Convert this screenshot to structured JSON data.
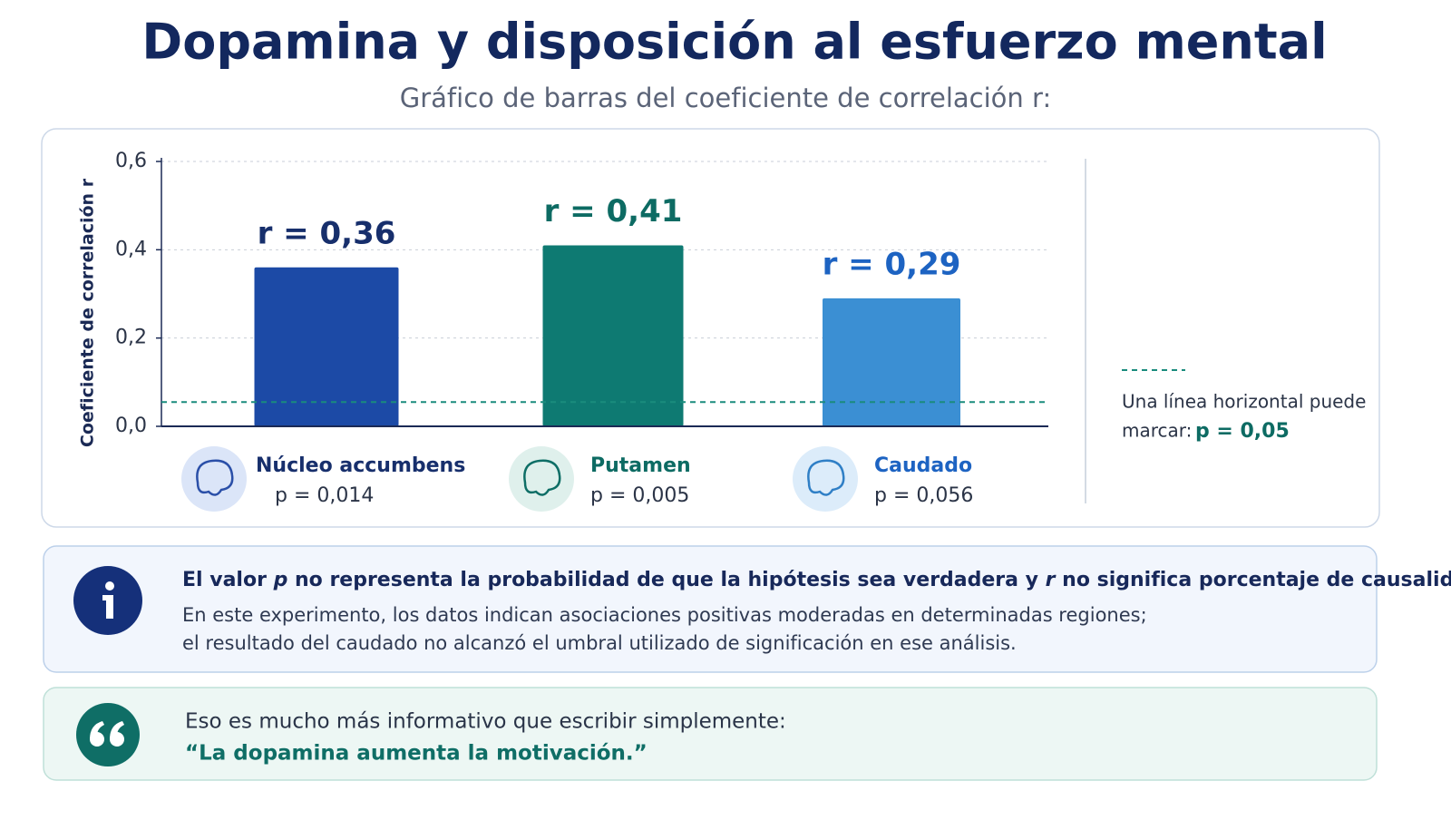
{
  "header": {
    "title": "Dopamina y disposición al esfuerzo mental",
    "subtitle": "Gráfico de barras del coeficiente de correlación r:"
  },
  "chart_data": {
    "type": "bar",
    "y_label": "Coeficiente de correlación r",
    "categories": [
      "Núcleo accumbens",
      "Putamen",
      "Caudado"
    ],
    "p_labels": [
      "p = 0,014",
      "p = 0,005",
      "p = 0,056"
    ],
    "values": [
      0.36,
      0.41,
      0.29
    ],
    "value_labels": [
      "r = 0,36",
      "r = 0,41",
      "r = 0,29"
    ],
    "colors": [
      "#1c4aa6",
      "#0e7a72",
      "#3b8fd3"
    ],
    "label_colors": [
      "#172f6c",
      "#0d6b63",
      "#1d63c2"
    ],
    "ylim": [
      0,
      0.6
    ],
    "yticks": [
      {
        "value": 0,
        "label": "0,0"
      },
      {
        "value": 0.2,
        "label": "0,2"
      },
      {
        "value": 0.4,
        "label": "0,4"
      },
      {
        "value": 0.6,
        "label": "0,6"
      }
    ],
    "grid": true,
    "reference_line": {
      "value": 0.055,
      "color": "#1a8c7d"
    },
    "reference_note": {
      "lines": [
        "Una línea horizontal puede",
        "marcar:"
      ],
      "highlight": "p = 0,05"
    }
  },
  "info": {
    "heading_parts": [
      "El valor ",
      "p",
      " no representa la probabilidad de que la hipótesis sea verdadera y ",
      "r",
      " no significa porcentaje de causalidad."
    ],
    "body": [
      "En este experimento, los datos indican asociaciones positivas moderadas en determinadas regiones;",
      "el resultado del caudado no alcanzó el umbral utilizado de significación en ese análisis."
    ]
  },
  "quote": {
    "lead": "Eso es mucho más informativo que escribir simplemente:",
    "text": "“La dopamina aumenta la motivación.”"
  }
}
